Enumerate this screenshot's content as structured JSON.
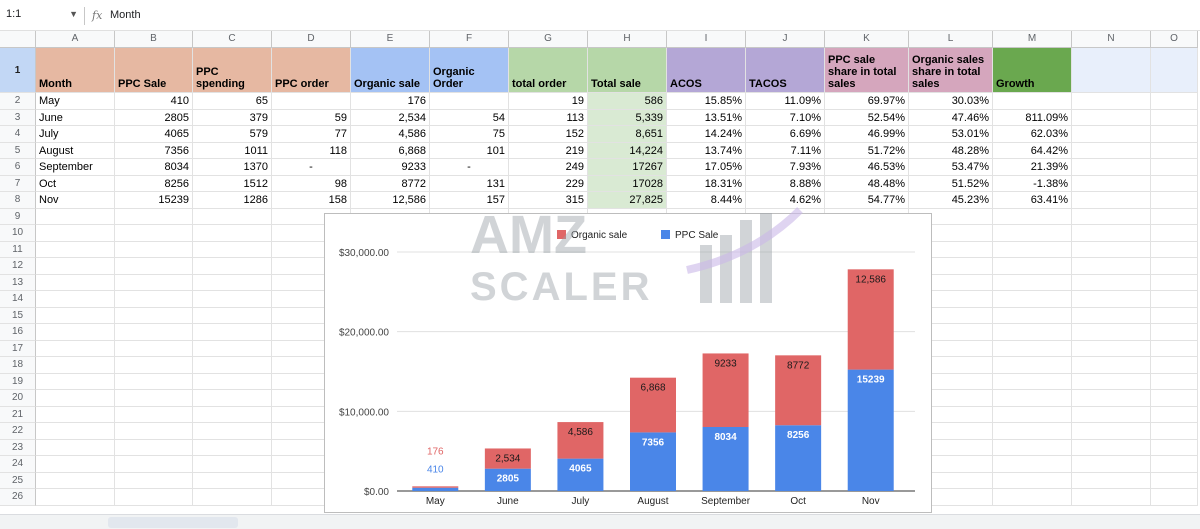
{
  "formula_bar": {
    "name_box": "1:1",
    "fx": "fx",
    "value": "Month"
  },
  "columns": [
    {
      "letter": "A",
      "w": 79
    },
    {
      "letter": "B",
      "w": 78
    },
    {
      "letter": "C",
      "w": 79
    },
    {
      "letter": "D",
      "w": 79
    },
    {
      "letter": "E",
      "w": 79
    },
    {
      "letter": "F",
      "w": 79
    },
    {
      "letter": "G",
      "w": 79
    },
    {
      "letter": "H",
      "w": 79
    },
    {
      "letter": "I",
      "w": 79
    },
    {
      "letter": "J",
      "w": 79
    },
    {
      "letter": "K",
      "w": 84
    },
    {
      "letter": "L",
      "w": 84
    },
    {
      "letter": "M",
      "w": 79
    },
    {
      "letter": "N",
      "w": 79
    },
    {
      "letter": "O",
      "w": 47
    }
  ],
  "header_row": [
    "Month",
    "PPC Sale",
    "PPC spending",
    "PPC order",
    "Organic sale",
    "Organic Order",
    "total order",
    "Total sale",
    "ACOS",
    "TACOS",
    "PPC sale share in total sales",
    "Organic sales share in total sales",
    "Growth",
    "",
    ""
  ],
  "header_colors": [
    "#e6b8a2",
    "#e6b8a2",
    "#e6b8a2",
    "#e6b8a2",
    "#a4c2f4",
    "#a4c2f4",
    "#b6d7a8",
    "#b6d7a8",
    "#b4a7d6",
    "#b4a7d6",
    "#d5a6bd",
    "#d5a6bd",
    "#6aa84f",
    "#ffffff",
    "#ffffff"
  ],
  "rows": [
    [
      "May",
      "410",
      "65",
      "",
      "176",
      "",
      "19",
      "586",
      "15.85%",
      "11.09%",
      "69.97%",
      "30.03%",
      ""
    ],
    [
      "June",
      "2805",
      "379",
      "59",
      "2,534",
      "54",
      "113",
      "5,339",
      "13.51%",
      "7.10%",
      "52.54%",
      "47.46%",
      "811.09%"
    ],
    [
      "July",
      "4065",
      "579",
      "77",
      "4,586",
      "75",
      "152",
      "8,651",
      "14.24%",
      "6.69%",
      "46.99%",
      "53.01%",
      "62.03%"
    ],
    [
      "August",
      "7356",
      "1011",
      "118",
      "6,868",
      "101",
      "219",
      "14,224",
      "13.74%",
      "7.11%",
      "51.72%",
      "48.28%",
      "64.42%"
    ],
    [
      "September",
      "8034",
      "1370",
      "-",
      "9233",
      "-",
      "249",
      "17267",
      "17.05%",
      "7.93%",
      "46.53%",
      "53.47%",
      "21.39%"
    ],
    [
      "Oct",
      "8256",
      "1512",
      "98",
      "8772",
      "131",
      "229",
      "17028",
      "18.31%",
      "8.88%",
      "48.48%",
      "51.52%",
      "-1.38%"
    ],
    [
      "Nov",
      "15239",
      "1286",
      "158",
      "12,586",
      "157",
      "315",
      "27,825",
      "8.44%",
      "4.62%",
      "54.77%",
      "45.23%",
      "63.41%"
    ]
  ],
  "row_numbers": [
    "1",
    "2",
    "3",
    "4",
    "5",
    "6",
    "7",
    "8",
    "9",
    "10",
    "11",
    "12",
    "13",
    "14",
    "15",
    "16",
    "17",
    "18",
    "19",
    "20",
    "21",
    "22",
    "23",
    "24",
    "25",
    "26"
  ],
  "total_sale_fill": "#d9ead3",
  "watermark": {
    "line1": "AMZ",
    "line2": "SCALER"
  },
  "chart_data": {
    "type": "bar",
    "stacked": true,
    "categories": [
      "May",
      "June",
      "July",
      "August",
      "September",
      "Oct",
      "Nov"
    ],
    "series": [
      {
        "name": "PPC Sale",
        "color": "#4a86e8",
        "values": [
          410,
          2805,
          4065,
          7356,
          8034,
          8256,
          15239
        ],
        "labels": [
          "410",
          "2805",
          "4065",
          "7356",
          "8034",
          "8256",
          "15239"
        ]
      },
      {
        "name": "Organic sale",
        "color": "#e06666",
        "values": [
          176,
          2534,
          4586,
          6868,
          9233,
          8772,
          12586
        ],
        "labels": [
          "176",
          "2,534",
          "4,586",
          "6,868",
          "9233",
          "8772",
          "12,586"
        ]
      }
    ],
    "legend": [
      "Organic sale",
      "PPC Sale"
    ],
    "legend_position": "top",
    "yticks": [
      "$0.00",
      "$10,000.00",
      "$20,000.00",
      "$30,000.00"
    ],
    "ylim": [
      0,
      30000
    ]
  }
}
